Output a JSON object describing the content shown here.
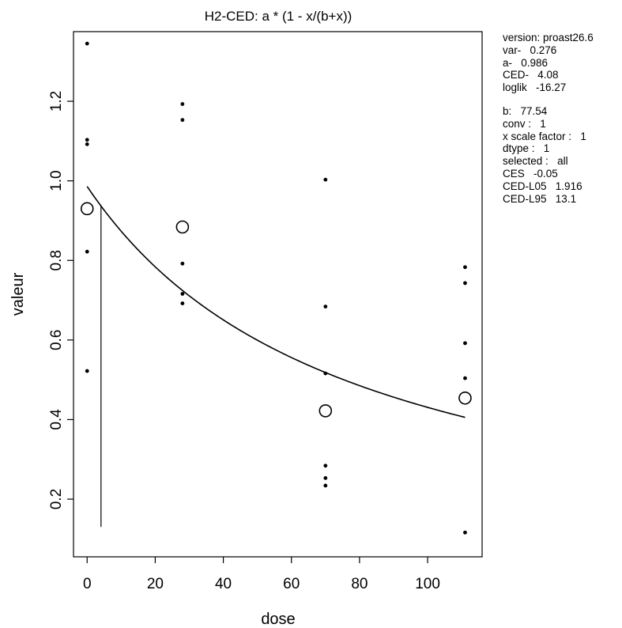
{
  "chart_data": {
    "type": "scatter",
    "title": "H2-CED: a * (1 - x/(b+x))",
    "xlabel": "dose",
    "ylabel": "valeur",
    "xlim": [
      -4,
      116
    ],
    "ylim": [
      0.055,
      1.375
    ],
    "xticks": [
      0,
      20,
      40,
      60,
      80,
      100
    ],
    "yticks": [
      0.2,
      0.4,
      0.6,
      0.8,
      1.0,
      1.2
    ],
    "ytick_labels": [
      "0.2",
      "0.4",
      "0.6",
      "0.8",
      "1.0",
      "1.2"
    ],
    "observations": [
      {
        "x": 0,
        "y": 1.345
      },
      {
        "x": 0,
        "y": 1.103
      },
      {
        "x": 0,
        "y": 1.092
      },
      {
        "x": 0,
        "y": 0.822
      },
      {
        "x": 0,
        "y": 0.522
      },
      {
        "x": 28,
        "y": 1.193
      },
      {
        "x": 28,
        "y": 1.153
      },
      {
        "x": 28,
        "y": 0.792
      },
      {
        "x": 28,
        "y": 0.716
      },
      {
        "x": 28,
        "y": 0.692
      },
      {
        "x": 70,
        "y": 1.003
      },
      {
        "x": 70,
        "y": 0.684
      },
      {
        "x": 70,
        "y": 0.516
      },
      {
        "x": 70,
        "y": 0.284
      },
      {
        "x": 70,
        "y": 0.253
      },
      {
        "x": 70,
        "y": 0.234
      },
      {
        "x": 111,
        "y": 0.783
      },
      {
        "x": 111,
        "y": 0.743
      },
      {
        "x": 111,
        "y": 0.592
      },
      {
        "x": 111,
        "y": 0.504
      },
      {
        "x": 111,
        "y": 0.116
      }
    ],
    "group_means": [
      {
        "x": 0,
        "y": 0.93
      },
      {
        "x": 28,
        "y": 0.884
      },
      {
        "x": 70,
        "y": 0.422
      },
      {
        "x": 111,
        "y": 0.454
      }
    ],
    "fitted_curve": {
      "a": 0.986,
      "b": 77.54,
      "x_range": [
        0,
        111
      ]
    },
    "ced_line": {
      "x": 4.08,
      "y_from": 0.13,
      "y_to": 0.937
    },
    "grid": false
  },
  "panel_lines": [
    {
      "label": "version: proast26.6",
      "value": ""
    },
    {
      "label": "var-",
      "value": "0.276"
    },
    {
      "label": "a-",
      "value": "0.986"
    },
    {
      "label": "CED-",
      "value": "4.08"
    },
    {
      "label": "loglik",
      "value": "-16.27"
    }
  ],
  "panel_lines_2": [
    {
      "label": "b:",
      "value": "77.54"
    },
    {
      "label": "conv :",
      "value": "1"
    },
    {
      "label": "x scale factor :",
      "value": "1"
    },
    {
      "label": "dtype :",
      "value": "1"
    },
    {
      "label": "selected :",
      "value": "all"
    },
    {
      "label": "CES",
      "value": "-0.05"
    },
    {
      "label": "CED-L05",
      "value": "1.916"
    },
    {
      "label": "CED-L95",
      "value": "13.1"
    }
  ]
}
